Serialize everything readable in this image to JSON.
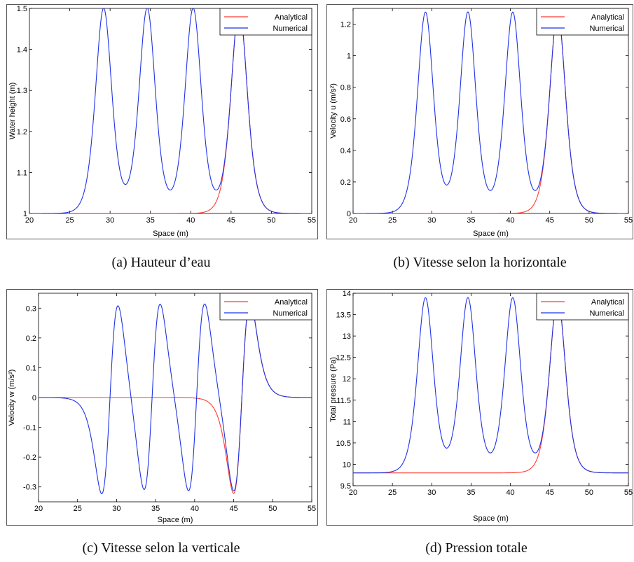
{
  "colors": {
    "analytical": "#ff3b30",
    "numerical": "#1f33e6"
  },
  "legend": {
    "analytical": "Analytical",
    "numerical": "Numerical"
  },
  "captions": {
    "a": "(a)  Hauteur d’eau",
    "b": "(b)  Vitesse selon la horizontale",
    "c": "(c)  Vitesse selon la verticale",
    "d": "(d)  Pression totale"
  },
  "chart_data": [
    {
      "id": "a",
      "type": "line",
      "xlabel": "Space (m)",
      "ylabel": "Water height (m)",
      "xlim": [
        20,
        55
      ],
      "ylim": [
        1,
        1.5
      ],
      "xticks": [
        20,
        25,
        30,
        35,
        40,
        45,
        50,
        55
      ],
      "yticks": [
        1,
        1.1,
        1.2,
        1.3,
        1.4,
        1.5
      ],
      "yticklabels": [
        "1",
        "1.1",
        "1.2",
        "1.3",
        "1.4",
        "1.5"
      ],
      "baseline": 1,
      "amplitude": 0.5,
      "peak_centers": [
        29.2,
        34.6,
        40.3,
        46.0
      ],
      "series": [
        {
          "name": "Analytical",
          "peak_centers": [
            46.0
          ]
        },
        {
          "name": "Numerical",
          "peak_centers": [
            29.2,
            34.6,
            40.3,
            46.0
          ]
        }
      ]
    },
    {
      "id": "b",
      "type": "line",
      "xlabel": "Space (m)",
      "ylabel": "Velocity u (m/s²)",
      "xlim": [
        20,
        55
      ],
      "ylim": [
        0,
        1.3
      ],
      "xticks": [
        20,
        25,
        30,
        35,
        40,
        45,
        50,
        55
      ],
      "yticks": [
        0,
        0.2,
        0.4,
        0.6,
        0.8,
        1,
        1.2
      ],
      "yticklabels": [
        "0",
        "0.2",
        "0.4",
        "0.6",
        "0.8",
        "1",
        "1.2"
      ],
      "baseline": 0,
      "amplitude": 1.275,
      "peak_centers": [
        29.2,
        34.6,
        40.3,
        46.0
      ],
      "series": [
        {
          "name": "Analytical",
          "peak_centers": [
            46.0
          ]
        },
        {
          "name": "Numerical",
          "peak_centers": [
            29.2,
            34.6,
            40.3,
            46.0
          ]
        }
      ]
    },
    {
      "id": "c",
      "type": "line",
      "xlabel": "Space (m)",
      "ylabel": "Velocity w (m/s²)",
      "xlim": [
        20,
        55
      ],
      "ylim": [
        -0.35,
        0.35
      ],
      "xticks": [
        20,
        25,
        30,
        35,
        40,
        45,
        50,
        55
      ],
      "yticks": [
        -0.3,
        -0.2,
        -0.1,
        0,
        0.1,
        0.2,
        0.3
      ],
      "yticklabels": [
        "-0.3",
        "-0.2",
        "-0.1",
        "0",
        "0.1",
        "0.2",
        "0.3"
      ],
      "pos_peak_x": [
        30.4,
        35.8,
        41.5,
        47.3
      ],
      "neg_peak_x": [
        27.9,
        33.3,
        39.0,
        44.8
      ],
      "amplitude": 0.322,
      "series": [
        {
          "name": "Analytical",
          "wave": [
            3
          ]
        },
        {
          "name": "Numerical",
          "wave": [
            0,
            1,
            2,
            3
          ]
        }
      ]
    },
    {
      "id": "d",
      "type": "line",
      "xlabel": "Space (m)",
      "ylabel": "Total pressure (Pa)",
      "xlim": [
        20,
        55
      ],
      "ylim": [
        9.5,
        14
      ],
      "xticks": [
        20,
        25,
        30,
        35,
        40,
        45,
        50,
        55
      ],
      "yticks": [
        9.5,
        10,
        10.5,
        11,
        11.5,
        12,
        12.5,
        13,
        13.5,
        14
      ],
      "yticklabels": [
        "9.5",
        "10",
        "10.5",
        "11",
        "11.5",
        "12",
        "12.5",
        "13",
        "13.5",
        "14"
      ],
      "baseline": 9.8,
      "amplitude": 4.09,
      "peak_centers": [
        29.2,
        34.6,
        40.3,
        46.0
      ],
      "series": [
        {
          "name": "Analytical",
          "peak_centers": [
            46.0
          ]
        },
        {
          "name": "Numerical",
          "peak_centers": [
            29.2,
            34.6,
            40.3,
            46.0
          ]
        }
      ]
    }
  ]
}
